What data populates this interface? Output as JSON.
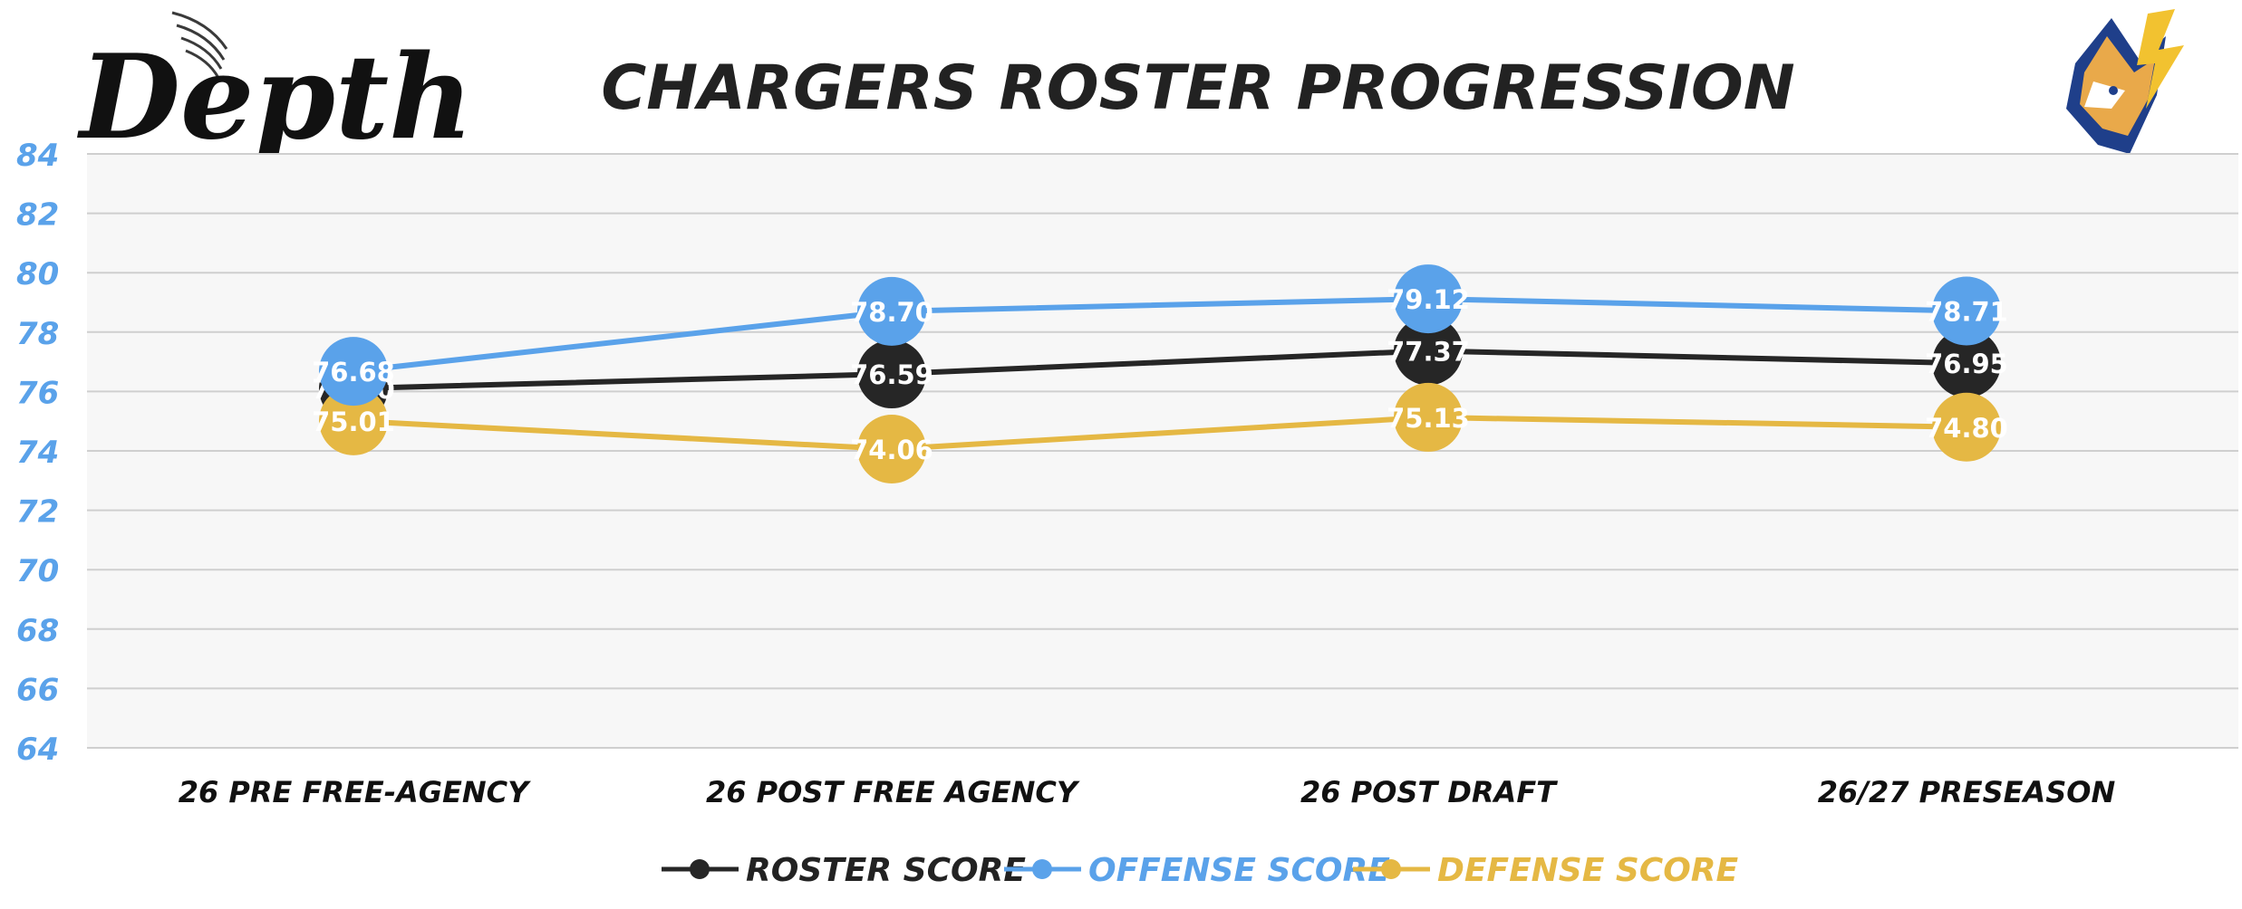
{
  "header": {
    "logo_text": "Depth",
    "title": "CHARGERS ROSTER PROGRESSION",
    "team_logo_icon": "wolf-lightning-logo-icon"
  },
  "colors": {
    "roster": "#262626",
    "offense": "#5aa2ea",
    "defense": "#e5b844",
    "axis_tick": "#5aa2ea",
    "plot_bg": "#f7f7f7",
    "grid": "#cfcfcf"
  },
  "chart_data": {
    "type": "line",
    "title": "CHARGERS ROSTER PROGRESSION",
    "xlabel": "",
    "ylabel": "",
    "categories": [
      "26 PRE FREE-AGENCY",
      "26 POST FREE AGENCY",
      "26 POST DRAFT",
      "26/27 PRESEASON"
    ],
    "ylim": [
      64,
      84
    ],
    "yticks": [
      64,
      66,
      68,
      70,
      72,
      74,
      76,
      78,
      80,
      82,
      84
    ],
    "grid": true,
    "legend_position": "bottom",
    "series": [
      {
        "name": "ROSTER SCORE",
        "color": "#262626",
        "values": [
          76.1,
          76.59,
          77.37,
          76.95
        ],
        "labels": [
          "76.10",
          "76.59",
          "77.37",
          "76.95"
        ]
      },
      {
        "name": "OFFENSE SCORE",
        "color": "#5aa2ea",
        "values": [
          76.68,
          78.7,
          79.12,
          78.71
        ],
        "labels": [
          "76.68",
          "78.70",
          "79.12",
          "78.71"
        ]
      },
      {
        "name": "DEFENSE SCORE",
        "color": "#e5b844",
        "values": [
          75.01,
          74.06,
          75.13,
          74.8
        ],
        "labels": [
          "75.01",
          "74.06",
          "75.13",
          "74.80"
        ]
      }
    ]
  }
}
